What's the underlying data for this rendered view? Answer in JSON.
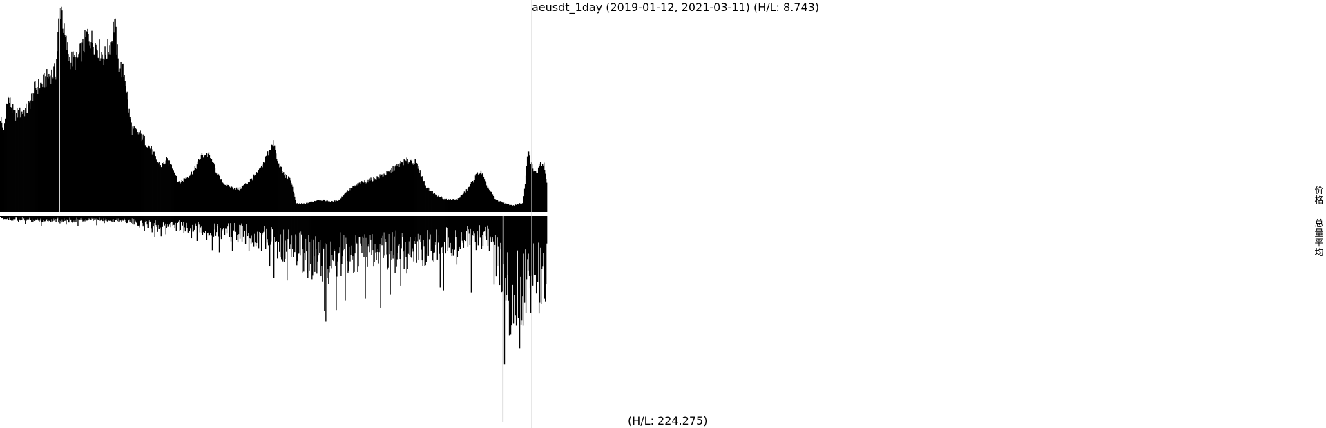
{
  "chart_data": {
    "type": "area",
    "title": "aeusdt_1day (2019-01-12, 2021-03-11) (H/L: 8.743)",
    "start_date": "2019-01-12",
    "end_date": "2021-03-11",
    "days": 790,
    "price": {
      "high_low_ratio": 8.743,
      "profile": [
        [
          0,
          0.46
        ],
        [
          5,
          0.38
        ],
        [
          10,
          0.56
        ],
        [
          15,
          0.52
        ],
        [
          20,
          0.47
        ],
        [
          30,
          0.48
        ],
        [
          40,
          0.5
        ],
        [
          50,
          0.6
        ],
        [
          60,
          0.62
        ],
        [
          70,
          0.66
        ],
        [
          80,
          0.68
        ],
        [
          85,
          0.96
        ],
        [
          88,
          1.0
        ],
        [
          92,
          0.86
        ],
        [
          100,
          0.74
        ],
        [
          110,
          0.73
        ],
        [
          120,
          0.8
        ],
        [
          125,
          0.86
        ],
        [
          130,
          0.84
        ],
        [
          140,
          0.8
        ],
        [
          150,
          0.75
        ],
        [
          160,
          0.82
        ],
        [
          165,
          0.93
        ],
        [
          170,
          0.72
        ],
        [
          180,
          0.66
        ],
        [
          185,
          0.5
        ],
        [
          190,
          0.4
        ],
        [
          200,
          0.38
        ],
        [
          210,
          0.34
        ],
        [
          220,
          0.29
        ],
        [
          225,
          0.25
        ],
        [
          232,
          0.22
        ],
        [
          240,
          0.25
        ],
        [
          250,
          0.21
        ],
        [
          258,
          0.14
        ],
        [
          270,
          0.17
        ],
        [
          280,
          0.2
        ],
        [
          290,
          0.27
        ],
        [
          300,
          0.28
        ],
        [
          310,
          0.21
        ],
        [
          318,
          0.15
        ],
        [
          330,
          0.12
        ],
        [
          345,
          0.11
        ],
        [
          360,
          0.15
        ],
        [
          375,
          0.2
        ],
        [
          390,
          0.31
        ],
        [
          395,
          0.33
        ],
        [
          400,
          0.24
        ],
        [
          410,
          0.18
        ],
        [
          420,
          0.15
        ],
        [
          427,
          0.04
        ],
        [
          440,
          0.04
        ],
        [
          460,
          0.06
        ],
        [
          480,
          0.05
        ],
        [
          490,
          0.06
        ],
        [
          500,
          0.1
        ],
        [
          520,
          0.14
        ],
        [
          540,
          0.16
        ],
        [
          560,
          0.19
        ],
        [
          580,
          0.24
        ],
        [
          592,
          0.25
        ],
        [
          600,
          0.24
        ],
        [
          615,
          0.12
        ],
        [
          630,
          0.08
        ],
        [
          645,
          0.06
        ],
        [
          660,
          0.06
        ],
        [
          675,
          0.11
        ],
        [
          690,
          0.19
        ],
        [
          695,
          0.19
        ],
        [
          700,
          0.14
        ],
        [
          715,
          0.06
        ],
        [
          730,
          0.04
        ],
        [
          740,
          0.03
        ],
        [
          750,
          0.04
        ],
        [
          755,
          0.04
        ],
        [
          760,
          0.21
        ],
        [
          762,
          0.31
        ],
        [
          765,
          0.24
        ],
        [
          770,
          0.21
        ],
        [
          775,
          0.18
        ],
        [
          778,
          0.24
        ],
        [
          785,
          0.23
        ],
        [
          790,
          0.12
        ]
      ]
    },
    "volume": {
      "high_low_ratio": 224.275,
      "profile": [
        [
          0,
          0.012
        ],
        [
          50,
          0.018
        ],
        [
          100,
          0.02
        ],
        [
          150,
          0.018
        ],
        [
          180,
          0.02
        ],
        [
          200,
          0.035
        ],
        [
          250,
          0.045
        ],
        [
          300,
          0.06
        ],
        [
          340,
          0.08
        ],
        [
          360,
          0.09
        ],
        [
          380,
          0.11
        ],
        [
          400,
          0.14
        ],
        [
          430,
          0.16
        ],
        [
          460,
          0.22
        ],
        [
          480,
          0.2
        ],
        [
          500,
          0.18
        ],
        [
          550,
          0.17
        ],
        [
          600,
          0.16
        ],
        [
          650,
          0.13
        ],
        [
          700,
          0.1
        ],
        [
          715,
          0.12
        ],
        [
          716,
          0.2
        ],
        [
          720,
          0.24
        ],
        [
          740,
          0.38
        ],
        [
          750,
          0.34
        ],
        [
          760,
          0.3
        ],
        [
          775,
          0.3
        ],
        [
          790,
          0.3
        ]
      ],
      "spikes": [
        [
          85,
          0.02
        ],
        [
          470,
          0.51
        ],
        [
          474,
          0.33
        ],
        [
          498,
          0.41
        ],
        [
          527,
          0.4
        ],
        [
          563,
          0.38
        ],
        [
          640,
          0.36
        ],
        [
          680,
          0.37
        ],
        [
          726,
          1.0
        ],
        [
          728,
          0.72
        ],
        [
          735,
          0.58
        ],
        [
          745,
          0.53
        ],
        [
          750,
          0.64
        ],
        [
          755,
          0.53
        ],
        [
          786,
          0.4
        ]
      ]
    },
    "highlight_days": [
      85,
      726,
      768
    ],
    "colors": {
      "bars": "#000000",
      "background": "#ffffff",
      "separator": "#ffffff",
      "marker_line": "#d4d4d4"
    }
  },
  "labels": {
    "volume_hl": "(H/L: 224.275)",
    "legend_price": "价格",
    "legend_volume": "总量平均"
  }
}
